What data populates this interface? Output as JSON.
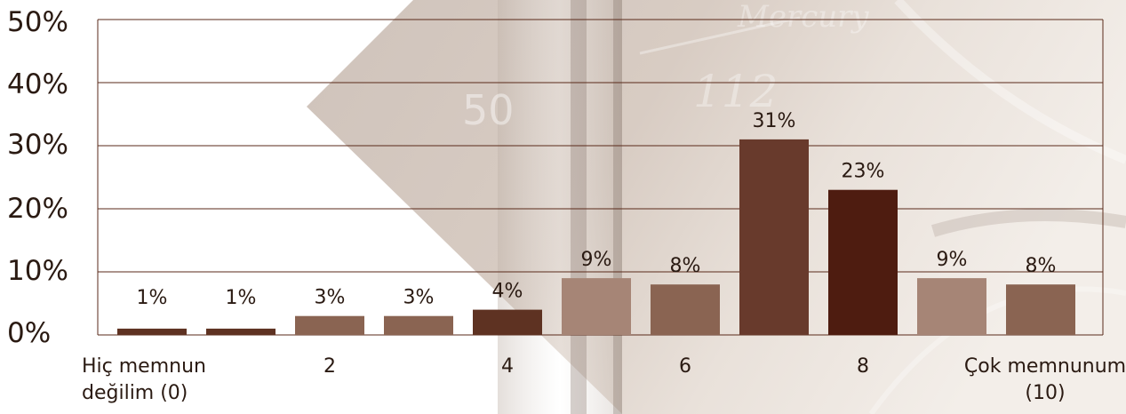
{
  "chart_data": {
    "type": "bar",
    "categories": [
      "0",
      "1",
      "2",
      "3",
      "4",
      "5",
      "6",
      "7",
      "8",
      "9",
      "10"
    ],
    "values": [
      1,
      1,
      3,
      3,
      4,
      9,
      8,
      31,
      23,
      9,
      8
    ],
    "data_labels": [
      "1%",
      "1%",
      "3%",
      "3%",
      "4%",
      "9%",
      "8%",
      "31%",
      "23%",
      "9%",
      "8%"
    ],
    "bar_colors": [
      "#5e3222",
      "#5e3222",
      "#8a6452",
      "#8a6452",
      "#5e3222",
      "#a68576",
      "#8a6452",
      "#683a2c",
      "#4e1c10",
      "#a68576",
      "#8a6452"
    ],
    "ylim": [
      0,
      50
    ],
    "yticks": [
      "0%",
      "10%",
      "20%",
      "30%",
      "40%",
      "50%"
    ],
    "xtick_labels": [
      {
        "category": "0",
        "lines": [
          "Hiç memnun",
          "değilim (0)"
        ],
        "align": "left"
      },
      {
        "category": "2",
        "lines": [
          "2"
        ],
        "align": "center"
      },
      {
        "category": "4",
        "lines": [
          "4"
        ],
        "align": "center"
      },
      {
        "category": "6",
        "lines": [
          "6"
        ],
        "align": "center"
      },
      {
        "category": "8",
        "lines": [
          "8"
        ],
        "align": "center"
      },
      {
        "category": "10",
        "lines": [
          "Çok memnunum",
          "(10)"
        ],
        "align": "center"
      }
    ],
    "grid": true,
    "gridline_color": "#5a2a1a",
    "legend": "none"
  }
}
